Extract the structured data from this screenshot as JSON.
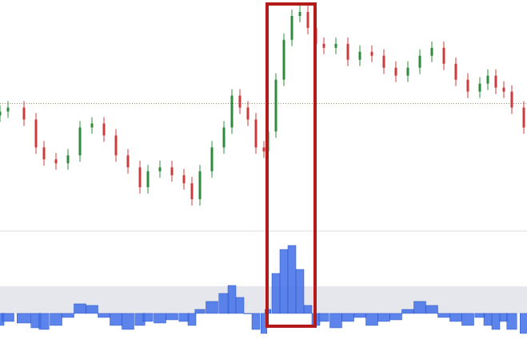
{
  "chart_data": [
    {
      "type": "candlestick",
      "x": [
        0,
        10,
        30,
        45,
        55,
        70,
        85,
        100,
        115,
        130,
        145,
        160,
        175,
        185,
        200,
        215,
        230,
        240,
        250,
        265,
        280,
        290,
        300,
        310,
        320,
        330,
        335,
        345,
        355,
        365,
        375,
        385,
        395,
        405,
        420,
        435,
        450,
        465,
        480,
        495,
        510,
        525,
        540,
        555,
        570,
        585,
        600,
        610,
        620,
        630,
        640,
        655
      ],
      "open": [
        155,
        160,
        165,
        150,
        115,
        100,
        95,
        105,
        140,
        145,
        130,
        105,
        90,
        65,
        85,
        90,
        80,
        70,
        50,
        85,
        115,
        140,
        180,
        165,
        150,
        115,
        110,
        135,
        200,
        250,
        280,
        285,
        265,
        245,
        240,
        245,
        225,
        235,
        230,
        215,
        205,
        215,
        230,
        240,
        220,
        200,
        185,
        195,
        205,
        190,
        185,
        165
      ],
      "high": [
        168,
        173,
        173,
        158,
        123,
        108,
        113,
        148,
        153,
        153,
        138,
        113,
        98,
        93,
        98,
        98,
        88,
        78,
        93,
        123,
        148,
        188,
        188,
        173,
        158,
        123,
        143,
        208,
        258,
        288,
        293,
        293,
        273,
        253,
        253,
        253,
        243,
        243,
        238,
        223,
        223,
        238,
        248,
        248,
        228,
        208,
        203,
        213,
        213,
        198,
        193,
        173
      ],
      "low": [
        147,
        152,
        142,
        107,
        92,
        87,
        87,
        97,
        132,
        122,
        97,
        82,
        57,
        57,
        77,
        72,
        62,
        42,
        42,
        77,
        107,
        132,
        157,
        142,
        107,
        102,
        102,
        127,
        192,
        242,
        272,
        257,
        237,
        232,
        232,
        217,
        217,
        222,
        207,
        197,
        197,
        207,
        222,
        212,
        192,
        177,
        177,
        187,
        182,
        177,
        157,
        132
      ],
      "close": [
        160,
        165,
        150,
        115,
        100,
        95,
        105,
        140,
        145,
        130,
        105,
        90,
        65,
        85,
        90,
        80,
        70,
        50,
        85,
        115,
        140,
        180,
        165,
        150,
        115,
        110,
        135,
        200,
        250,
        280,
        285,
        265,
        245,
        240,
        245,
        225,
        235,
        230,
        215,
        205,
        215,
        230,
        240,
        220,
        200,
        185,
        195,
        205,
        190,
        185,
        165,
        140
      ],
      "up_color": "#2e8b3e",
      "down_color": "#cc3b3b",
      "xlim": [
        0,
        659
      ],
      "ylim": [
        10,
        300
      ],
      "reference_line": 170
    },
    {
      "type": "bar",
      "x": [
        0,
        10,
        30,
        45,
        55,
        70,
        85,
        100,
        115,
        130,
        145,
        160,
        175,
        185,
        200,
        215,
        230,
        240,
        250,
        265,
        280,
        290,
        300,
        310,
        320,
        330,
        335,
        345,
        355,
        365,
        375,
        385,
        395,
        405,
        420,
        435,
        450,
        465,
        480,
        495,
        510,
        525,
        540,
        555,
        570,
        585,
        600,
        610,
        620,
        630,
        640,
        655
      ],
      "values": [
        -15,
        -10,
        -12,
        -18,
        -20,
        -15,
        -5,
        12,
        10,
        -5,
        -15,
        -20,
        -15,
        -10,
        -12,
        -8,
        -10,
        -15,
        5,
        15,
        25,
        35,
        20,
        0,
        -20,
        -25,
        5,
        50,
        80,
        85,
        55,
        10,
        -15,
        -10,
        -18,
        -10,
        -5,
        -15,
        -10,
        -8,
        5,
        15,
        10,
        -5,
        -10,
        -15,
        -5,
        -15,
        -20,
        -10,
        -20,
        -25
      ],
      "color": "#3f6fe6",
      "xlim": [
        0,
        659
      ],
      "ylim": [
        -32,
        92
      ],
      "shaded_range": [
        0,
        34
      ]
    }
  ]
}
